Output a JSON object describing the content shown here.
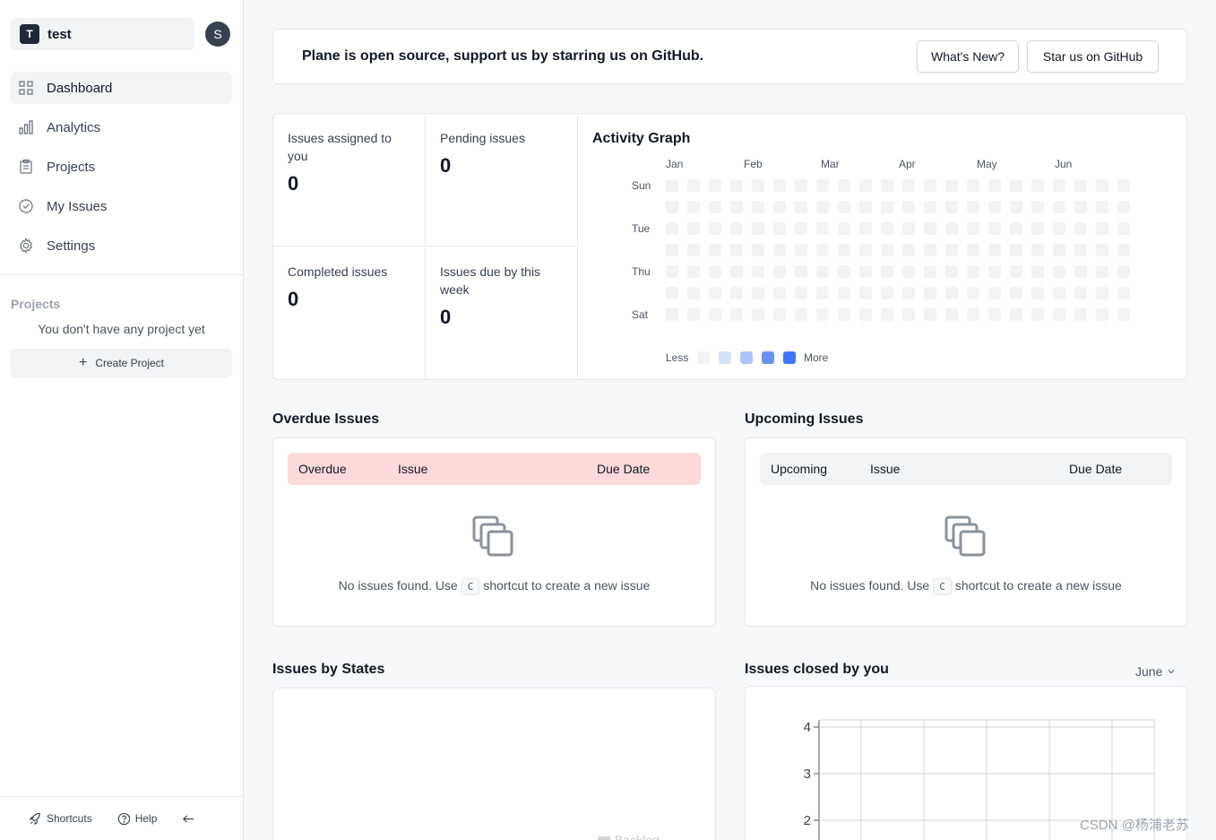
{
  "workspace": {
    "initial": "T",
    "name": "test",
    "user_initial": "S"
  },
  "nav": [
    {
      "label": "Dashboard",
      "icon": "grid-icon"
    },
    {
      "label": "Analytics",
      "icon": "bar-chart-icon"
    },
    {
      "label": "Projects",
      "icon": "clipboard-icon"
    },
    {
      "label": "My Issues",
      "icon": "check-circle-icon"
    },
    {
      "label": "Settings",
      "icon": "gear-icon"
    }
  ],
  "projects": {
    "heading": "Projects",
    "empty": "You don't have any project yet",
    "create_label": "Create Project"
  },
  "footer": {
    "shortcuts": "Shortcuts",
    "help": "Help"
  },
  "banner": {
    "text": "Plane is open source, support us by starring us on GitHub.",
    "whats_new": "What's New?",
    "star": "Star us on GitHub"
  },
  "stats": {
    "assigned": {
      "label": "Issues assigned to you",
      "value": "0"
    },
    "pending": {
      "label": "Pending issues",
      "value": "0"
    },
    "completed": {
      "label": "Completed issues",
      "value": "0"
    },
    "due_week": {
      "label": "Issues due by this week",
      "value": "0"
    }
  },
  "activity": {
    "title": "Activity Graph",
    "months": [
      "Jan",
      "Feb",
      "Mar",
      "Apr",
      "May",
      "Jun"
    ],
    "days": [
      "Sun",
      "Tue",
      "Thu",
      "Sat"
    ],
    "legend_less": "Less",
    "legend_more": "More",
    "legend_colors": [
      "#f1f3f5",
      "#d6e2fc",
      "#adc4f9",
      "#6a92f2",
      "#3f76ff"
    ]
  },
  "overdue": {
    "title": "Overdue Issues",
    "col1": "Overdue",
    "col2": "Issue",
    "col3": "Due Date"
  },
  "upcoming": {
    "title": "Upcoming Issues",
    "col1": "Upcoming",
    "col2": "Issue",
    "col3": "Due Date"
  },
  "empty": {
    "before": "No issues found. Use",
    "key": "C",
    "after": "shortcut to create a new issue"
  },
  "states": {
    "title": "Issues by States",
    "legend_partial": "Backlog"
  },
  "closed": {
    "title": "Issues closed by you",
    "month": "June"
  },
  "chart_data": {
    "type": "line",
    "title": "Issues closed by you",
    "y_ticks": [
      4,
      3,
      2
    ],
    "ylim": [
      0,
      4
    ],
    "grid": true,
    "series": []
  },
  "watermark": "CSDN @杨浦老苏"
}
